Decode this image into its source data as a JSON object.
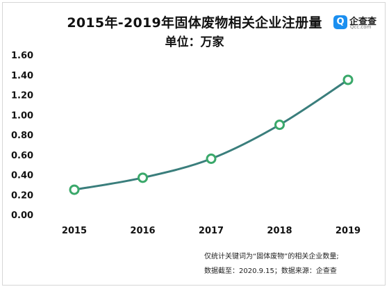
{
  "title_line1": "2015年-2019年固体废物相关企业注册量",
  "title_line2": "单位：万家",
  "logo": {
    "badge": "Q",
    "name": "企查查",
    "sub": "Qcc.com"
  },
  "notes": [
    "仅统计关键词为“固体废物”的相关企业数量;",
    "数据截至：2020.9.15；数据来源：企查查"
  ],
  "colors": {
    "line": "#3a7e7c",
    "marker_edge": "#3aa86a",
    "marker_fill": "#ffffff",
    "text": "#111111"
  },
  "chart_data": {
    "type": "line",
    "title": "2015年-2019年固体废物相关企业注册量",
    "subtitle": "单位：万家",
    "x": [
      "2015",
      "2016",
      "2017",
      "2018",
      "2019"
    ],
    "series": [
      {
        "values": [
          0.25,
          0.37,
          0.56,
          0.9,
          1.35
        ]
      }
    ],
    "ylim": [
      0,
      1.6
    ],
    "yticks": [
      "0.00",
      "0.20",
      "0.40",
      "0.60",
      "0.80",
      "1.00",
      "1.20",
      "1.40",
      "1.60"
    ],
    "grid": false,
    "smooth": true,
    "legend": "none"
  }
}
